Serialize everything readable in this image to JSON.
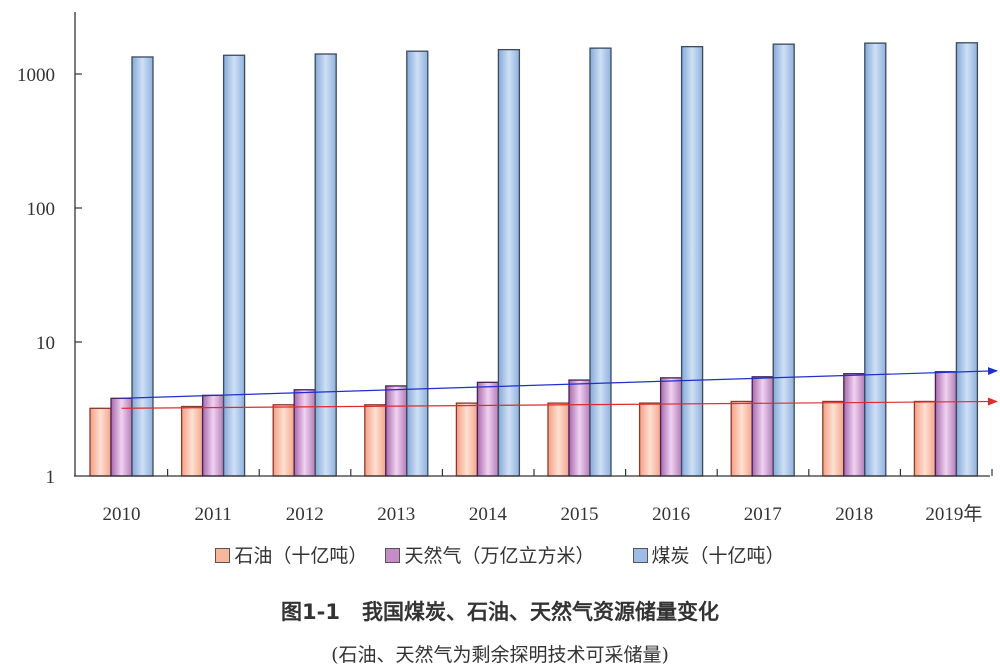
{
  "chart_data": {
    "type": "bar",
    "title": "图1-1 我国煤炭、石油、天然气资源储量变化",
    "subtitle": "(石油、天然气为剩余探明技术可采储量)",
    "xlabel": "",
    "ylabel": "",
    "yscale": "log",
    "ylim": [
      1,
      2500
    ],
    "yticks": [
      1,
      10,
      100,
      1000
    ],
    "ytick_labels": [
      "1",
      "10",
      "100",
      "1000"
    ],
    "categories": [
      "2010",
      "2011",
      "2012",
      "2013",
      "2014",
      "2015",
      "2016",
      "2017",
      "2018",
      "2019年"
    ],
    "series": [
      {
        "name": "石油（十亿吨）",
        "color": "#f7b79d",
        "values": [
          3.2,
          3.3,
          3.4,
          3.4,
          3.5,
          3.5,
          3.5,
          3.6,
          3.6,
          3.6
        ]
      },
      {
        "name": "天然气（万亿立方米）",
        "color": "#c58cc8",
        "values": [
          3.8,
          4.0,
          4.4,
          4.7,
          5.0,
          5.2,
          5.4,
          5.5,
          5.8,
          6.0
        ]
      },
      {
        "name": "煤炭（十亿吨）",
        "color": "#9dbde6",
        "values": [
          1340,
          1380,
          1410,
          1480,
          1520,
          1560,
          1600,
          1670,
          1700,
          1710
        ]
      }
    ],
    "trendlines": [
      {
        "series": "天然气",
        "color": "#1f2fd0",
        "from": 3.8,
        "to": 6.1,
        "arrow": true
      },
      {
        "series": "石油",
        "color": "#e02b2b",
        "from": 3.2,
        "to": 3.6,
        "arrow": true
      }
    ],
    "grid": false,
    "legend_position": "bottom"
  },
  "legend": {
    "items": [
      {
        "label": "石油（十亿吨）",
        "color": "#f7b79d"
      },
      {
        "label": "天然气（万亿立方米）",
        "color": "#c58cc8"
      },
      {
        "label": "煤炭（十亿吨）",
        "color": "#9dbde6"
      }
    ]
  },
  "figure": {
    "number": "图1-1",
    "title": "我国煤炭、石油、天然气资源储量变化",
    "subtitle": "(石油、天然气为剩余探明技术可采储量)"
  }
}
